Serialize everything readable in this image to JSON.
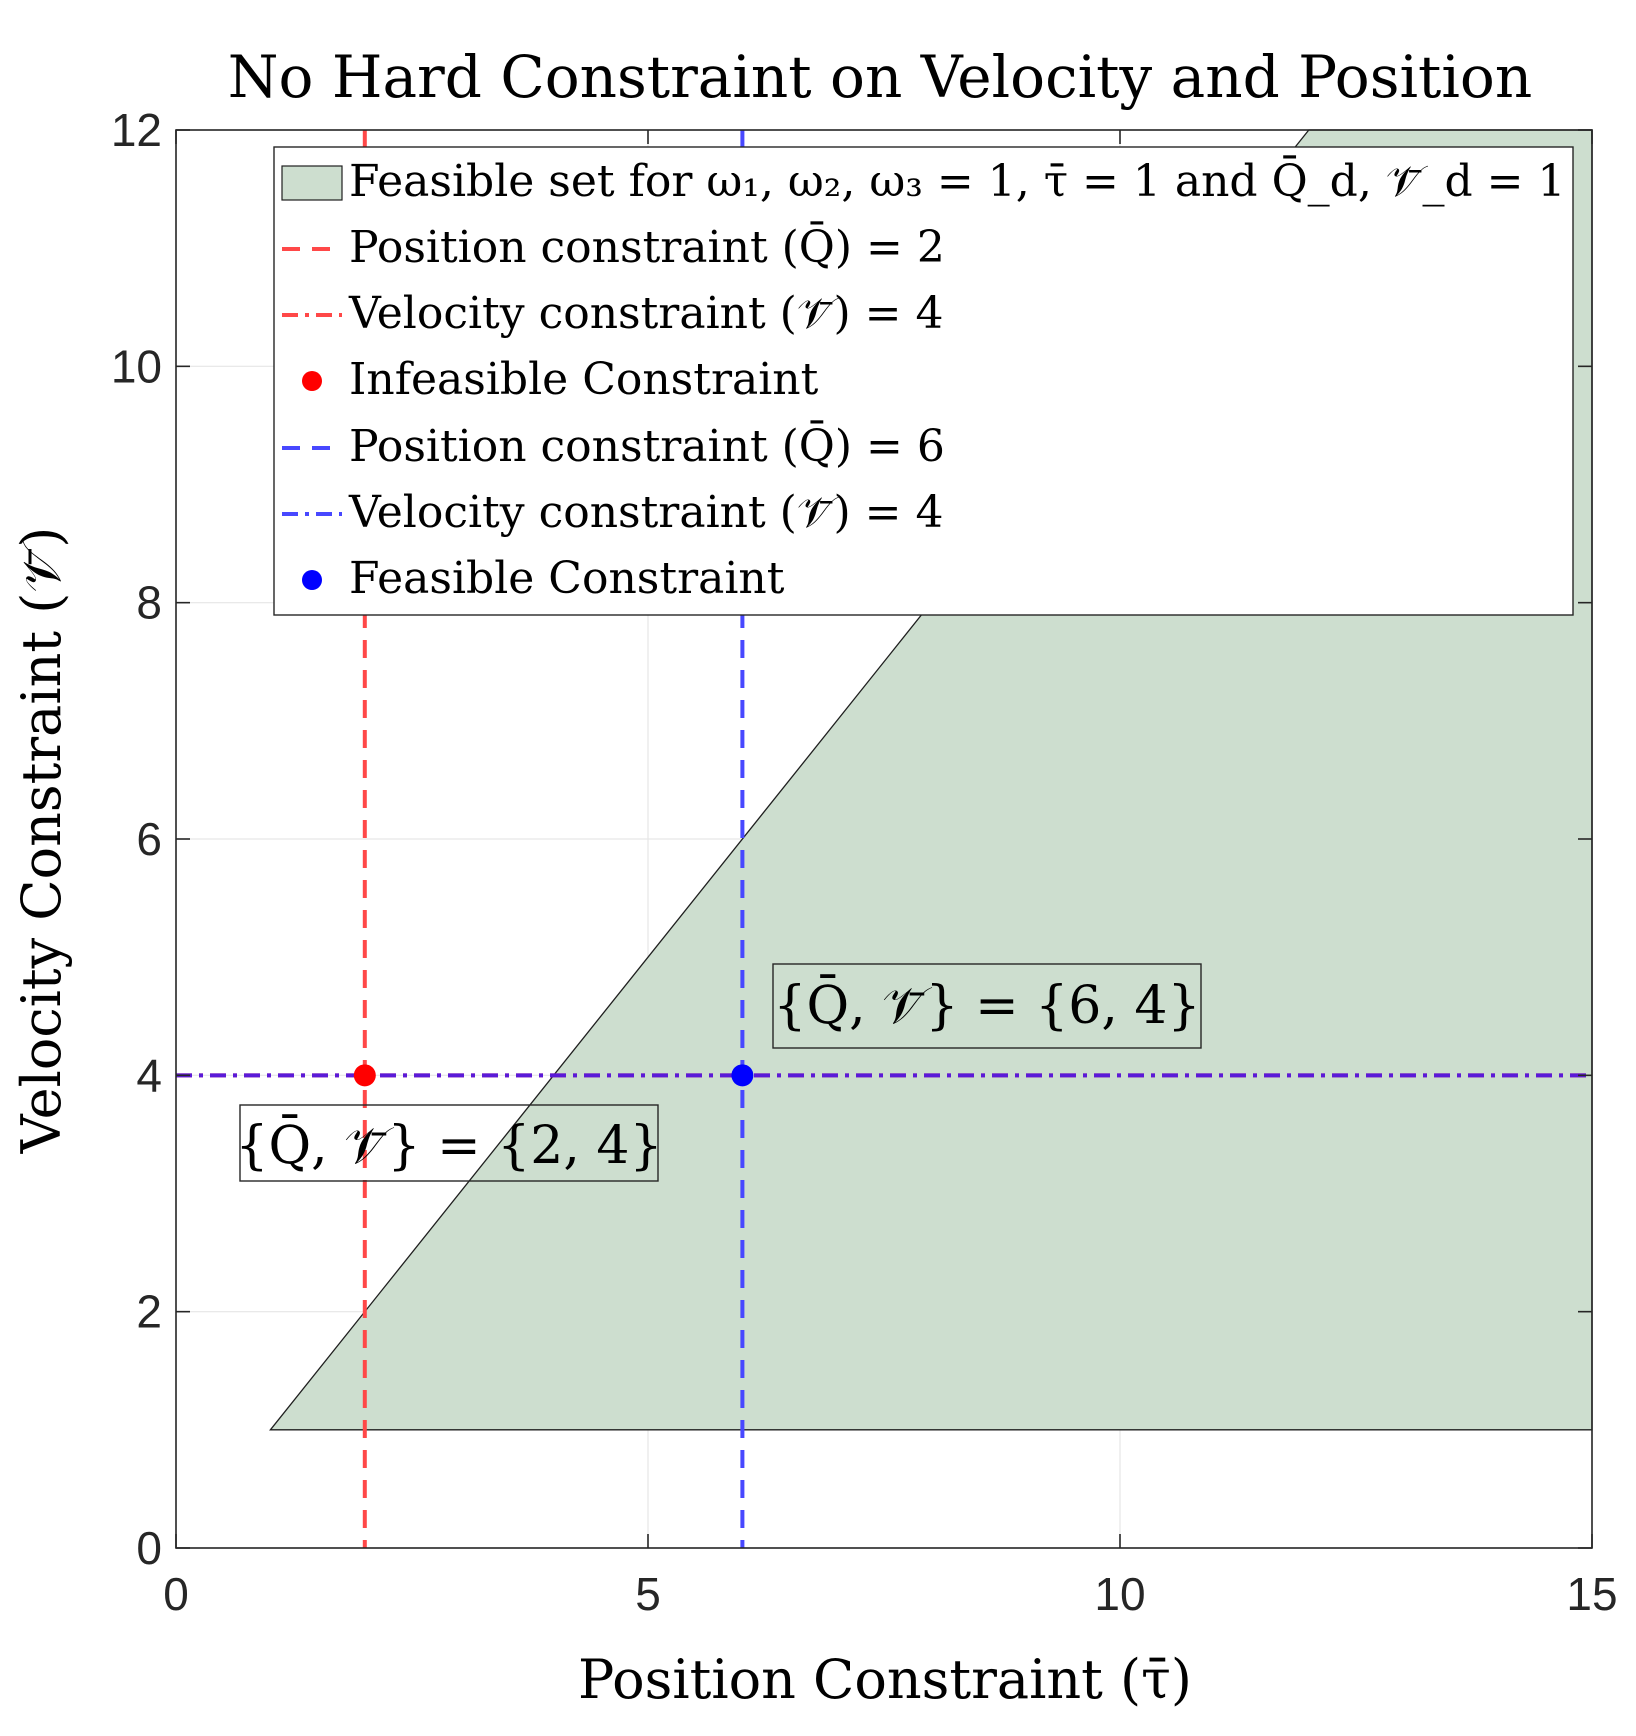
{
  "colors": {
    "feasible_fill": "#cddecf",
    "feasible_edge": "#1f1f1f",
    "infeasible": "#ff4848",
    "infeasible_point": "#ff0000",
    "feasible_line": "#4848ff",
    "feasible_point": "#0000ff",
    "combined_velocity_line": "#5a1ad8"
  },
  "chart_data": {
    "type": "scatter",
    "title": "No Hard Constraint on Velocity and Position",
    "xlabel": "Position Constraint (τ̄)",
    "ylabel": "Velocity Constraint (𝒱̄)",
    "xlim": [
      0,
      15
    ],
    "ylim": [
      0,
      12
    ],
    "xticks": [
      0,
      5,
      10,
      15
    ],
    "yticks": [
      0,
      2,
      4,
      6,
      8,
      10,
      12
    ],
    "xtick_labels": [
      "0",
      "5",
      "10",
      "15"
    ],
    "ytick_labels": [
      "0",
      "2",
      "4",
      "6",
      "8",
      "10",
      "12"
    ],
    "grid": true,
    "legend_position": "top-right",
    "feasible_region": {
      "name": "Feasible set for ω₁, ω₂, ω₃ = 1, τ̄ = 1 and Q̄_d, 𝒱̄_d = 1",
      "vertices": [
        [
          1,
          1
        ],
        [
          12,
          12
        ],
        [
          15,
          12
        ],
        [
          15,
          1
        ]
      ]
    },
    "series": [
      {
        "name": "Position constraint (Q̄) = 2",
        "kind": "vline",
        "x": 2,
        "style": "dashed",
        "color": "infeasible"
      },
      {
        "name": "Velocity constraint (𝒱̄) = 4",
        "kind": "hline",
        "y": 4,
        "style": "dashdot",
        "color": "infeasible"
      },
      {
        "name": "Infeasible Constraint",
        "kind": "point",
        "x": 2,
        "y": 4,
        "color": "infeasible_point"
      },
      {
        "name": "Position constraint (Q̄) = 6",
        "kind": "vline",
        "x": 6,
        "style": "dashed",
        "color": "feasible_line"
      },
      {
        "name": "Velocity constraint (𝒱̄) = 4",
        "kind": "hline",
        "y": 4,
        "style": "dashdot",
        "color": "feasible_line"
      },
      {
        "name": "Feasible Constraint",
        "kind": "point",
        "x": 6,
        "y": 4,
        "color": "feasible_point"
      }
    ],
    "annotations": [
      {
        "text": "{Q̄, 𝒱̄} = {6, 4}",
        "x": 6.3,
        "y": 4.6
      },
      {
        "text": "{Q̄, 𝒱̄} = {2, 4}",
        "x": 0.7,
        "y": 3.5
      }
    ]
  }
}
